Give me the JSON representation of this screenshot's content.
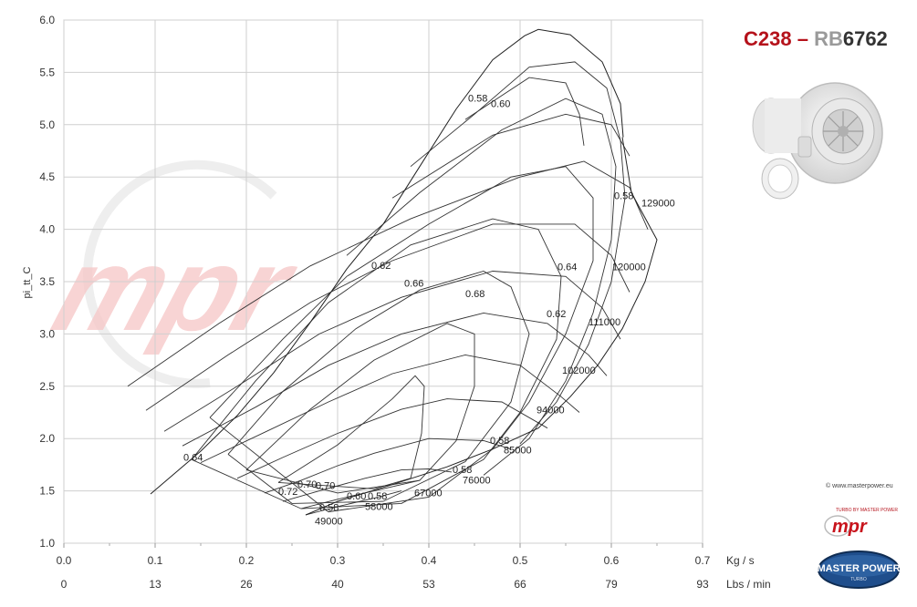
{
  "header": {
    "title_part1": "C238",
    "title_dash": " – ",
    "title_part2a": "RB",
    "title_part2b": "6762",
    "colors": {
      "red": "#b5121b",
      "gray": "#9a9a9a",
      "dark": "#333333"
    }
  },
  "credit": "© www.masterpower.eu",
  "badge": {
    "mpr_top": "TURBO BY MASTER POWER",
    "mp_main": "MASTER POWER",
    "mp_sub": "TURBO"
  },
  "watermark": {
    "text": "mpr",
    "color": "#f6c6c6"
  },
  "chart_data": {
    "type": "line",
    "ylabel": "pi_tt_C",
    "xlim": [
      0.0,
      0.7
    ],
    "ylim": [
      1.0,
      6.0
    ],
    "x_ticks": [
      "0.0",
      "0.1",
      "0.2",
      "0.3",
      "0.4",
      "0.5",
      "0.6",
      "0.7"
    ],
    "x_unit": "Kg / s",
    "x2_ticks": [
      "0",
      "13",
      "26",
      "40",
      "53",
      "66",
      "79",
      "93"
    ],
    "x2_unit": "Lbs / min",
    "y_ticks": [
      "1.0",
      "1.5",
      "2.0",
      "2.5",
      "3.0",
      "3.5",
      "4.0",
      "4.5",
      "5.0",
      "5.5",
      "6.0"
    ],
    "grid": true,
    "speed_lines": [
      {
        "label": "49000",
        "points": [
          [
            0.265,
            1.27
          ],
          [
            0.3,
            1.35
          ],
          [
            0.34,
            1.43
          ],
          [
            0.37,
            1.5
          ]
        ]
      },
      {
        "label": "58000",
        "points": [
          [
            0.26,
            1.33
          ],
          [
            0.3,
            1.42
          ],
          [
            0.34,
            1.5
          ],
          [
            0.37,
            1.56
          ],
          [
            0.39,
            1.6
          ]
        ]
      },
      {
        "label": "67000",
        "points": [
          [
            0.24,
            1.4
          ],
          [
            0.28,
            1.5
          ],
          [
            0.33,
            1.62
          ],
          [
            0.37,
            1.7
          ],
          [
            0.4,
            1.71
          ],
          [
            0.425,
            1.68
          ]
        ]
      },
      {
        "label": "76000",
        "points": [
          [
            0.22,
            1.48
          ],
          [
            0.26,
            1.6
          ],
          [
            0.3,
            1.74
          ],
          [
            0.34,
            1.86
          ],
          [
            0.4,
            2.0
          ],
          [
            0.46,
            1.98
          ],
          [
            0.49,
            1.9
          ]
        ]
      },
      {
        "label": "85000",
        "points": [
          [
            0.19,
            1.62
          ],
          [
            0.24,
            1.82
          ],
          [
            0.3,
            2.05
          ],
          [
            0.37,
            2.28
          ],
          [
            0.42,
            2.38
          ],
          [
            0.48,
            2.35
          ],
          [
            0.53,
            2.1
          ]
        ]
      },
      {
        "label": "94000",
        "points": [
          [
            0.15,
            1.77
          ],
          [
            0.22,
            2.06
          ],
          [
            0.29,
            2.35
          ],
          [
            0.36,
            2.62
          ],
          [
            0.44,
            2.8
          ],
          [
            0.5,
            2.7
          ],
          [
            0.545,
            2.4
          ],
          [
            0.565,
            2.25
          ]
        ]
      },
      {
        "label": "102000",
        "points": [
          [
            0.13,
            1.93
          ],
          [
            0.21,
            2.3
          ],
          [
            0.29,
            2.7
          ],
          [
            0.37,
            3.0
          ],
          [
            0.46,
            3.2
          ],
          [
            0.53,
            3.1
          ],
          [
            0.575,
            2.8
          ],
          [
            0.595,
            2.6
          ]
        ]
      },
      {
        "label": "111000",
        "points": [
          [
            0.11,
            2.07
          ],
          [
            0.19,
            2.5
          ],
          [
            0.28,
            3.0
          ],
          [
            0.37,
            3.35
          ],
          [
            0.47,
            3.6
          ],
          [
            0.55,
            3.55
          ],
          [
            0.59,
            3.25
          ],
          [
            0.61,
            2.95
          ]
        ]
      },
      {
        "label": "120000",
        "points": [
          [
            0.09,
            2.27
          ],
          [
            0.18,
            2.8
          ],
          [
            0.27,
            3.3
          ],
          [
            0.36,
            3.7
          ],
          [
            0.47,
            4.05
          ],
          [
            0.56,
            4.05
          ],
          [
            0.6,
            3.75
          ],
          [
            0.62,
            3.4
          ]
        ]
      },
      {
        "label": "129000",
        "points": [
          [
            0.07,
            2.5
          ],
          [
            0.17,
            3.1
          ],
          [
            0.27,
            3.65
          ],
          [
            0.38,
            4.1
          ],
          [
            0.5,
            4.5
          ],
          [
            0.57,
            4.65
          ],
          [
            0.62,
            4.4
          ],
          [
            0.64,
            4.0
          ]
        ]
      },
      {
        "label": "",
        "points": [
          [
            0.36,
            4.3
          ],
          [
            0.47,
            4.9
          ],
          [
            0.55,
            5.1
          ],
          [
            0.6,
            5.0
          ],
          [
            0.62,
            4.7
          ]
        ]
      },
      {
        "label": "",
        "points": [
          [
            0.44,
            5.05
          ],
          [
            0.51,
            5.45
          ],
          [
            0.55,
            5.4
          ],
          [
            0.565,
            5.1
          ],
          [
            0.57,
            4.8
          ]
        ]
      }
    ],
    "surge_line": [
      [
        0.095,
        1.47
      ],
      [
        0.15,
        1.88
      ],
      [
        0.19,
        2.22
      ],
      [
        0.23,
        2.63
      ],
      [
        0.27,
        3.11
      ],
      [
        0.31,
        3.62
      ],
      [
        0.35,
        4.05
      ],
      [
        0.39,
        4.6
      ],
      [
        0.43,
        5.15
      ],
      [
        0.47,
        5.62
      ],
      [
        0.505,
        5.85
      ],
      [
        0.52,
        5.91
      ],
      [
        0.555,
        5.86
      ],
      [
        0.59,
        5.6
      ],
      [
        0.61,
        5.2
      ],
      [
        0.613,
        4.88
      ]
    ],
    "choke_line": [
      [
        0.265,
        1.27
      ],
      [
        0.3,
        1.4
      ],
      [
        0.36,
        1.56
      ],
      [
        0.42,
        1.73
      ],
      [
        0.47,
        1.9
      ],
      [
        0.52,
        2.1
      ],
      [
        0.555,
        2.4
      ],
      [
        0.585,
        2.7
      ],
      [
        0.612,
        3.05
      ],
      [
        0.637,
        3.5
      ],
      [
        0.65,
        3.9
      ],
      [
        0.622,
        4.35
      ],
      [
        0.612,
        4.88
      ]
    ],
    "efficiency_islands": [
      {
        "label": "0.70",
        "points": [
          [
            0.235,
            1.58
          ],
          [
            0.3,
            1.94
          ],
          [
            0.36,
            2.38
          ],
          [
            0.385,
            2.6
          ],
          [
            0.395,
            2.5
          ],
          [
            0.392,
            2.05
          ],
          [
            0.38,
            1.62
          ],
          [
            0.34,
            1.52
          ],
          [
            0.235,
            1.58
          ]
        ]
      },
      {
        "label": "0.68",
        "points": [
          [
            0.2,
            1.7
          ],
          [
            0.27,
            2.28
          ],
          [
            0.34,
            2.75
          ],
          [
            0.42,
            3.1
          ],
          [
            0.45,
            3.0
          ],
          [
            0.45,
            2.5
          ],
          [
            0.43,
            1.98
          ],
          [
            0.39,
            1.6
          ],
          [
            0.3,
            1.48
          ],
          [
            0.2,
            1.7
          ]
        ]
      },
      {
        "label": "0.66",
        "points": [
          [
            0.18,
            1.85
          ],
          [
            0.24,
            2.45
          ],
          [
            0.32,
            3.05
          ],
          [
            0.39,
            3.42
          ],
          [
            0.46,
            3.6
          ],
          [
            0.49,
            3.45
          ],
          [
            0.51,
            3.0
          ],
          [
            0.49,
            2.35
          ],
          [
            0.44,
            1.78
          ],
          [
            0.35,
            1.4
          ],
          [
            0.25,
            1.38
          ],
          [
            0.18,
            1.85
          ]
        ]
      },
      {
        "label": "0.64",
        "points": [
          [
            0.14,
            1.8
          ],
          [
            0.21,
            2.55
          ],
          [
            0.29,
            3.3
          ],
          [
            0.38,
            3.85
          ],
          [
            0.47,
            4.1
          ],
          [
            0.52,
            4.0
          ],
          [
            0.545,
            3.55
          ],
          [
            0.54,
            2.95
          ],
          [
            0.5,
            2.25
          ],
          [
            0.46,
            1.8
          ],
          [
            0.37,
            1.38
          ],
          [
            0.26,
            1.33
          ],
          [
            0.14,
            1.8
          ]
        ]
      },
      {
        "label": "0.62",
        "points": [
          [
            0.16,
            2.2
          ],
          [
            0.24,
            2.95
          ],
          [
            0.31,
            3.55
          ],
          [
            0.4,
            4.05
          ],
          [
            0.49,
            4.5
          ],
          [
            0.55,
            4.6
          ],
          [
            0.58,
            4.3
          ],
          [
            0.58,
            3.7
          ],
          [
            0.55,
            3.0
          ],
          [
            0.51,
            2.35
          ],
          [
            0.47,
            1.9
          ],
          [
            0.4,
            1.44
          ],
          [
            0.29,
            1.3
          ],
          [
            0.16,
            2.2
          ]
        ]
      },
      {
        "label": "0.60",
        "points": [
          [
            0.31,
            3.75
          ],
          [
            0.39,
            4.35
          ],
          [
            0.48,
            4.95
          ],
          [
            0.55,
            5.25
          ],
          [
            0.59,
            5.1
          ],
          [
            0.605,
            4.6
          ],
          [
            0.6,
            3.9
          ],
          [
            0.58,
            3.2
          ],
          [
            0.55,
            2.55
          ],
          [
            0.51,
            2.0
          ],
          [
            0.46,
            1.65
          ]
        ]
      },
      {
        "label": "0.58",
        "points": [
          [
            0.38,
            4.6
          ],
          [
            0.45,
            5.1
          ],
          [
            0.51,
            5.55
          ],
          [
            0.56,
            5.6
          ],
          [
            0.595,
            5.35
          ],
          [
            0.61,
            4.85
          ],
          [
            0.615,
            4.3
          ],
          [
            0.6,
            3.5
          ],
          [
            0.575,
            2.9
          ],
          [
            0.54,
            2.35
          ],
          [
            0.5,
            1.95
          ]
        ]
      }
    ],
    "annotations": [
      {
        "text": "0.58",
        "x": 0.443,
        "y": 5.22
      },
      {
        "text": "0.60",
        "x": 0.468,
        "y": 5.17
      },
      {
        "text": "0.58",
        "x": 0.603,
        "y": 4.29
      },
      {
        "text": "129000",
        "x": 0.633,
        "y": 4.22
      },
      {
        "text": "0.62",
        "x": 0.337,
        "y": 3.62
      },
      {
        "text": "0.66",
        "x": 0.373,
        "y": 3.45
      },
      {
        "text": "0.64",
        "x": 0.541,
        "y": 3.61
      },
      {
        "text": "0.68",
        "x": 0.44,
        "y": 3.35
      },
      {
        "text": "120000",
        "x": 0.601,
        "y": 3.61
      },
      {
        "text": "0.62",
        "x": 0.529,
        "y": 3.16
      },
      {
        "text": "111000",
        "x": 0.575,
        "y": 3.08
      },
      {
        "text": "102000",
        "x": 0.546,
        "y": 2.62
      },
      {
        "text": "94000",
        "x": 0.518,
        "y": 2.24
      },
      {
        "text": "0.64",
        "x": 0.131,
        "y": 1.79
      },
      {
        "text": "0.58",
        "x": 0.467,
        "y": 1.95
      },
      {
        "text": "85000",
        "x": 0.482,
        "y": 1.86
      },
      {
        "text": "0.58",
        "x": 0.426,
        "y": 1.67
      },
      {
        "text": "76000",
        "x": 0.437,
        "y": 1.57
      },
      {
        "text": "0.72",
        "x": 0.235,
        "y": 1.46
      },
      {
        "text": "0.70",
        "x": 0.256,
        "y": 1.53
      },
      {
        "text": "0.70",
        "x": 0.276,
        "y": 1.52
      },
      {
        "text": "0.60",
        "x": 0.31,
        "y": 1.42
      },
      {
        "text": "0.58",
        "x": 0.333,
        "y": 1.42
      },
      {
        "text": "67000",
        "x": 0.384,
        "y": 1.45
      },
      {
        "text": "0.58",
        "x": 0.28,
        "y": 1.31
      },
      {
        "text": "58000",
        "x": 0.33,
        "y": 1.32
      },
      {
        "text": "49000",
        "x": 0.275,
        "y": 1.18
      }
    ]
  }
}
